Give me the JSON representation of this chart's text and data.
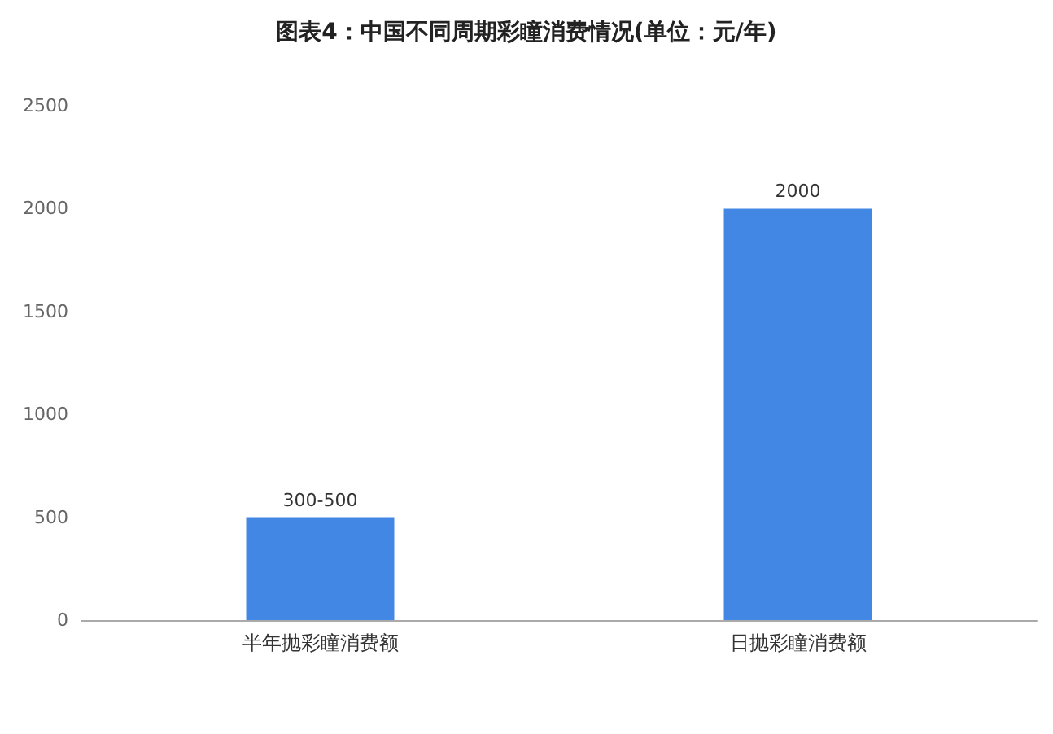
{
  "chart_data": {
    "type": "bar",
    "title": "图表4：中国不同周期彩瞳消费情况(单位：元/年)",
    "categories": [
      "半年抛彩瞳消费额",
      "日抛彩瞳消费额"
    ],
    "values": [
      500,
      2000
    ],
    "value_labels": [
      "300-500",
      "2000"
    ],
    "color": "#4287e3",
    "ylim": [
      0,
      2500
    ],
    "yticks": [
      0,
      500,
      1000,
      1500,
      2000,
      2500
    ],
    "grid": false
  }
}
